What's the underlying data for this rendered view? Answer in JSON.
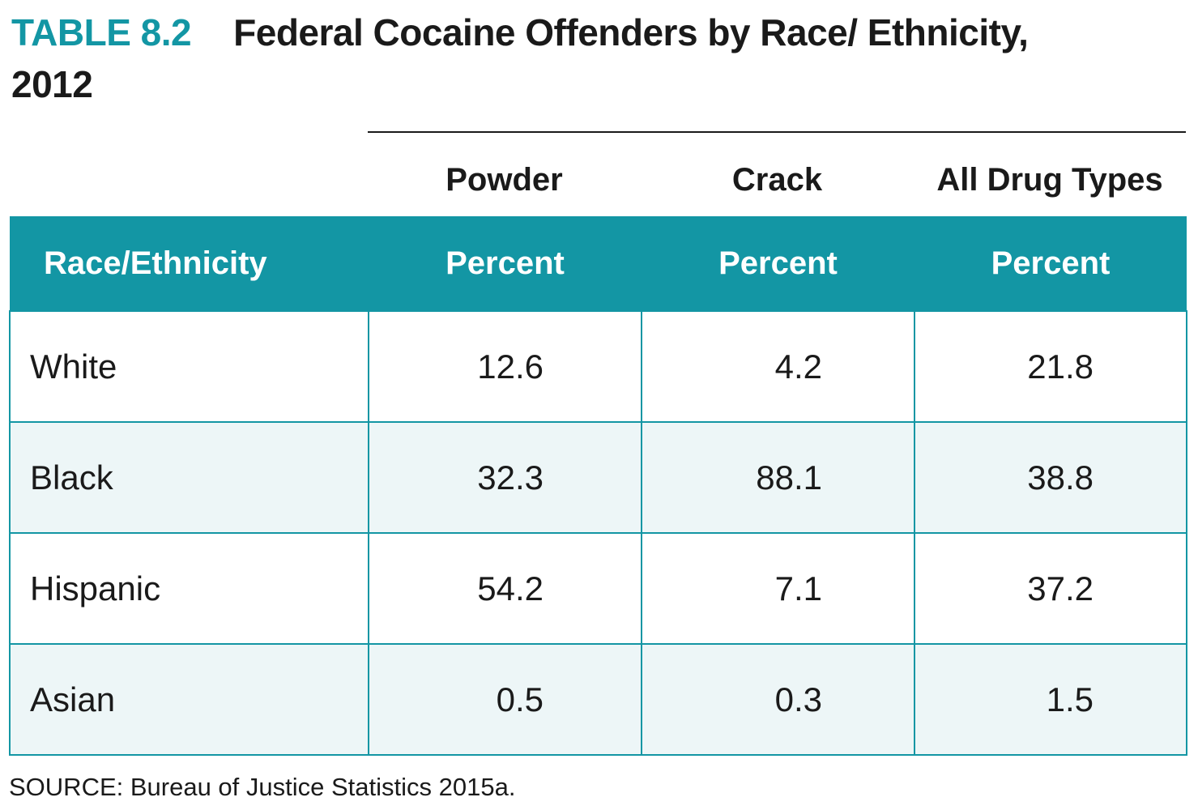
{
  "title": {
    "label": "TABLE 8.2",
    "text": "Federal Cocaine Offenders by Race/ Ethnicity, 2012"
  },
  "group_headers": [
    "Powder",
    "Crack",
    "All Drug Types"
  ],
  "columns": [
    "Race/Ethnicity",
    "Percent",
    "Percent",
    "Percent"
  ],
  "rows": [
    {
      "label": "White",
      "powder": "12.6",
      "crack": "4.2",
      "all": "21.8"
    },
    {
      "label": "Black",
      "powder": "32.3",
      "crack": "88.1",
      "all": "38.8"
    },
    {
      "label": "Hispanic",
      "powder": "54.2",
      "crack": "7.1",
      "all": "37.2"
    },
    {
      "label": "Asian",
      "powder": "0.5",
      "crack": "0.3",
      "all": "1.5"
    }
  ],
  "source": "SOURCE: Bureau of Justice Statistics 2015a.",
  "colors": {
    "accent": "#1396a4",
    "row_tint": "#edf6f7"
  }
}
